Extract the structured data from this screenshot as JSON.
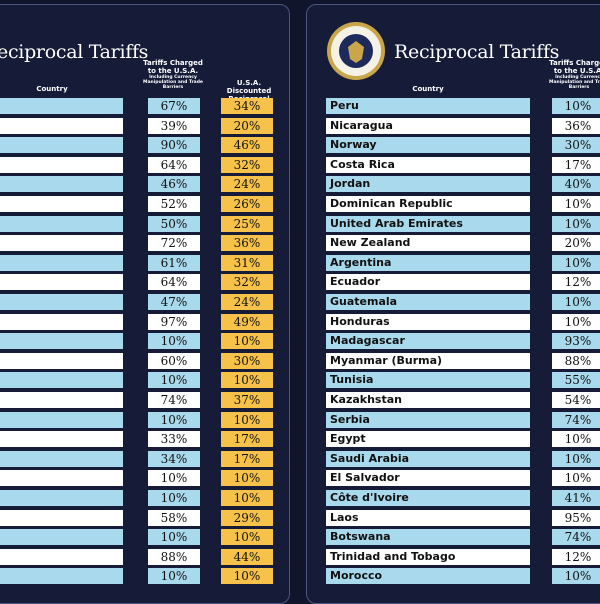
{
  "left": {
    "title": "Reciprocal Tariffs",
    "header_country": "Country",
    "header_charged": "Tariffs Charged to the U.S.A.",
    "header_charged_note": "Including Currency Manipulation and Trade Barriers",
    "header_discounted": "U.S.A. Discounted Reciprocal Tariffs",
    "rows": [
      [
        "67%",
        "34%"
      ],
      [
        "39%",
        "20%"
      ],
      [
        "90%",
        "46%"
      ],
      [
        "64%",
        "32%"
      ],
      [
        "46%",
        "24%"
      ],
      [
        "52%",
        "26%"
      ],
      [
        "50%",
        "25%"
      ],
      [
        "72%",
        "36%"
      ],
      [
        "61%",
        "31%"
      ],
      [
        "64%",
        "32%"
      ],
      [
        "47%",
        "24%"
      ],
      [
        "97%",
        "49%"
      ],
      [
        "10%",
        "10%"
      ],
      [
        "60%",
        "30%"
      ],
      [
        "10%",
        "10%"
      ],
      [
        "74%",
        "37%"
      ],
      [
        "10%",
        "10%"
      ],
      [
        "33%",
        "17%"
      ],
      [
        "34%",
        "17%"
      ],
      [
        "10%",
        "10%"
      ],
      [
        "10%",
        "10%"
      ],
      [
        "58%",
        "29%"
      ],
      [
        "10%",
        "10%"
      ],
      [
        "88%",
        "44%"
      ],
      [
        "10%",
        "10%"
      ]
    ]
  },
  "right": {
    "title": "Reciprocal Tariffs",
    "header_country": "Country",
    "header_charged": "Tariffs Charged to the U.S.A.",
    "header_charged_note": "Including Currency Manipulation and Trade Barriers",
    "rows": [
      [
        "Peru",
        "10%"
      ],
      [
        "Nicaragua",
        "36%"
      ],
      [
        "Norway",
        "30%"
      ],
      [
        "Costa Rica",
        "17%"
      ],
      [
        "Jordan",
        "40%"
      ],
      [
        "Dominican Republic",
        "10%"
      ],
      [
        "United Arab Emirates",
        "10%"
      ],
      [
        "New Zealand",
        "20%"
      ],
      [
        "Argentina",
        "10%"
      ],
      [
        "Ecuador",
        "12%"
      ],
      [
        "Guatemala",
        "10%"
      ],
      [
        "Honduras",
        "10%"
      ],
      [
        "Madagascar",
        "93%"
      ],
      [
        "Myanmar (Burma)",
        "88%"
      ],
      [
        "Tunisia",
        "55%"
      ],
      [
        "Kazakhstan",
        "54%"
      ],
      [
        "Serbia",
        "74%"
      ],
      [
        "Egypt",
        "10%"
      ],
      [
        "Saudi Arabia",
        "10%"
      ],
      [
        "El Salvador",
        "10%"
      ],
      [
        "Côte d'Ivoire",
        "41%"
      ],
      [
        "Laos",
        "95%"
      ],
      [
        "Botswana",
        "74%"
      ],
      [
        "Trinidad and Tobago",
        "12%"
      ],
      [
        "Morocco",
        "10%"
      ]
    ]
  }
}
